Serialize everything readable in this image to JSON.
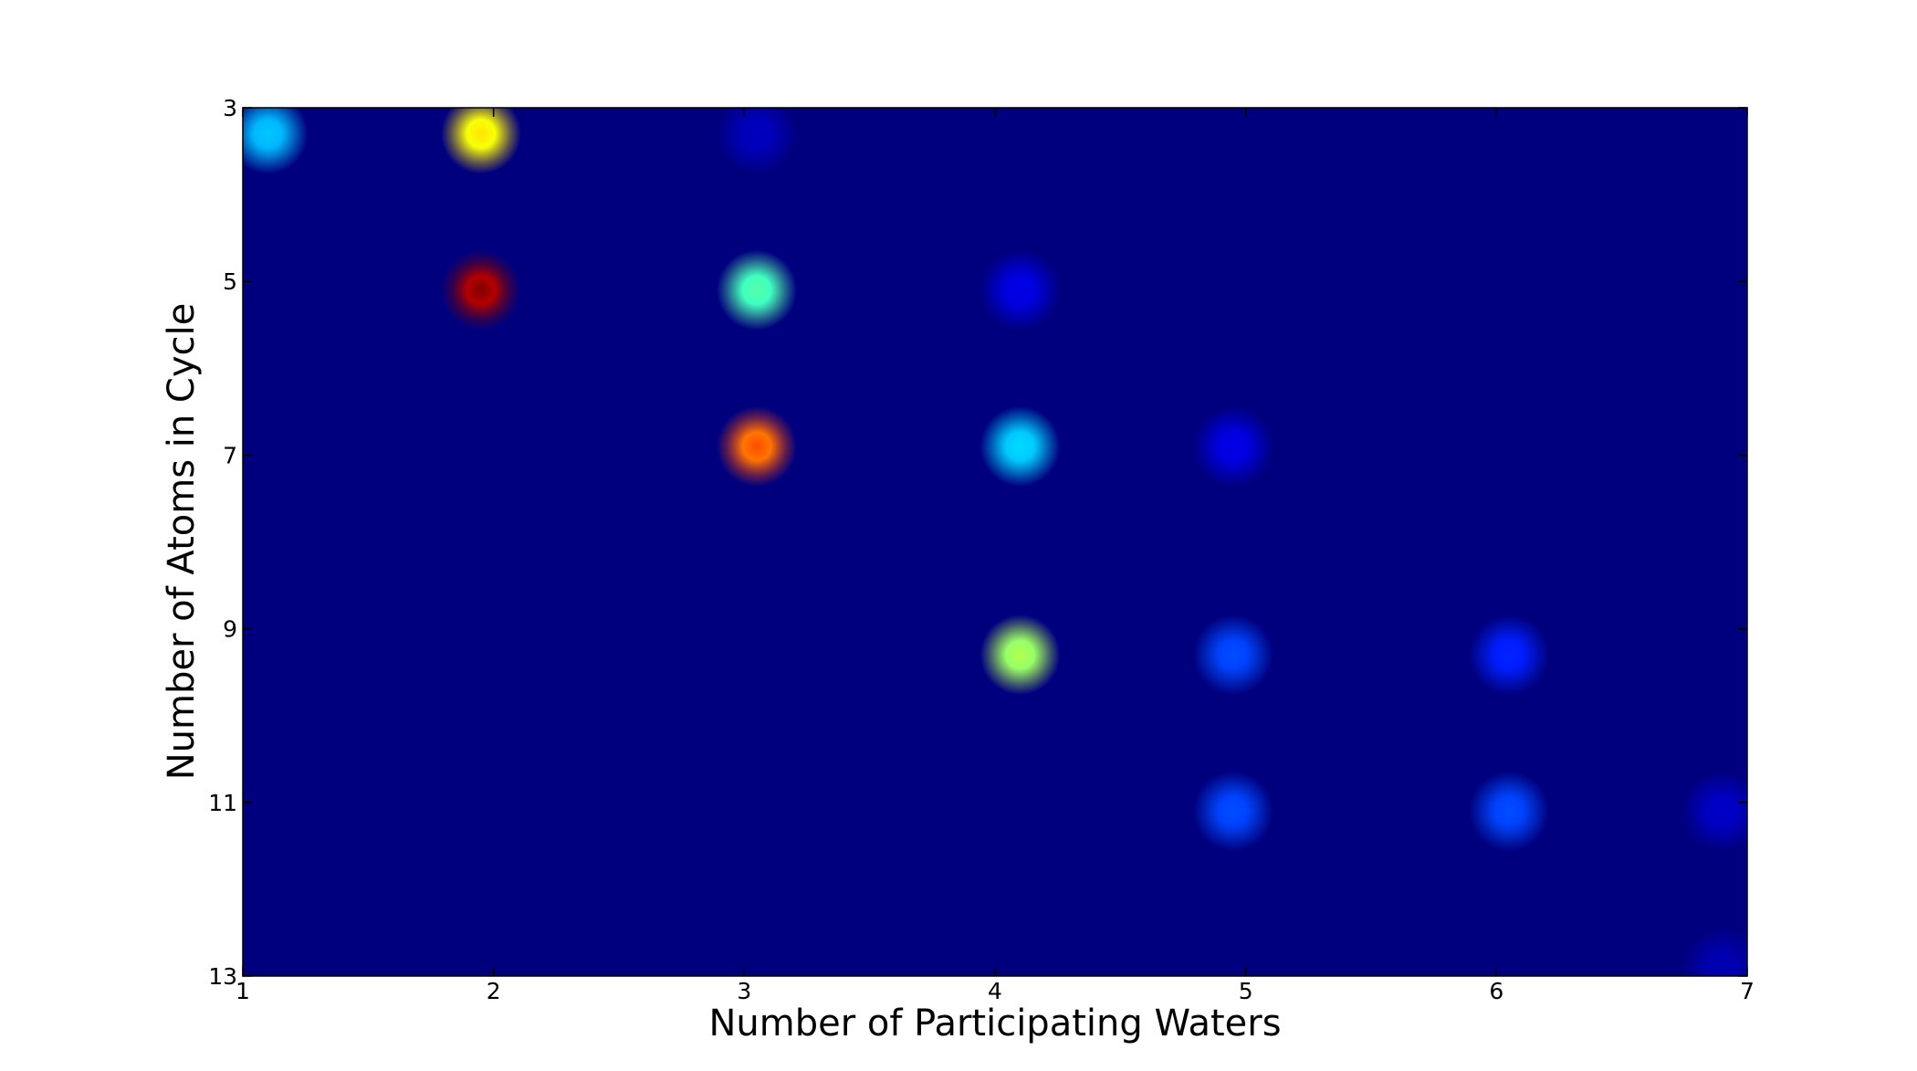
{
  "chart_data": {
    "type": "heatmap",
    "title": "",
    "xlabel": "Number of Participating Waters",
    "ylabel": "Number of Atoms in Cycle",
    "xlim": [
      1,
      7
    ],
    "ylim": [
      13,
      3
    ],
    "y_inverted": true,
    "x_ticks": [
      "1",
      "2",
      "3",
      "4",
      "5",
      "6",
      "7"
    ],
    "y_ticks": [
      "3",
      "5",
      "7",
      "9",
      "11",
      "13"
    ],
    "colormap": "jet",
    "background_color": "#00007f",
    "grid": false,
    "legend": "none",
    "cells": [
      {
        "x": 1.1,
        "y": 3.3,
        "intensity": 0.32
      },
      {
        "x": 1.95,
        "y": 3.3,
        "intensity": 0.65
      },
      {
        "x": 3.05,
        "y": 3.3,
        "intensity": 0.06
      },
      {
        "x": 1.95,
        "y": 5.1,
        "intensity": 1.0
      },
      {
        "x": 3.05,
        "y": 5.1,
        "intensity": 0.46
      },
      {
        "x": 4.1,
        "y": 5.1,
        "intensity": 0.1
      },
      {
        "x": 3.05,
        "y": 6.9,
        "intensity": 0.8
      },
      {
        "x": 4.1,
        "y": 6.9,
        "intensity": 0.34
      },
      {
        "x": 4.95,
        "y": 6.9,
        "intensity": 0.1
      },
      {
        "x": 4.1,
        "y": 9.3,
        "intensity": 0.55
      },
      {
        "x": 4.95,
        "y": 9.3,
        "intensity": 0.2
      },
      {
        "x": 6.05,
        "y": 9.3,
        "intensity": 0.16
      },
      {
        "x": 4.95,
        "y": 11.1,
        "intensity": 0.2
      },
      {
        "x": 6.05,
        "y": 11.1,
        "intensity": 0.2
      },
      {
        "x": 6.9,
        "y": 11.1,
        "intensity": 0.07
      },
      {
        "x": 6.9,
        "y": 12.9,
        "intensity": 0.05
      }
    ]
  }
}
